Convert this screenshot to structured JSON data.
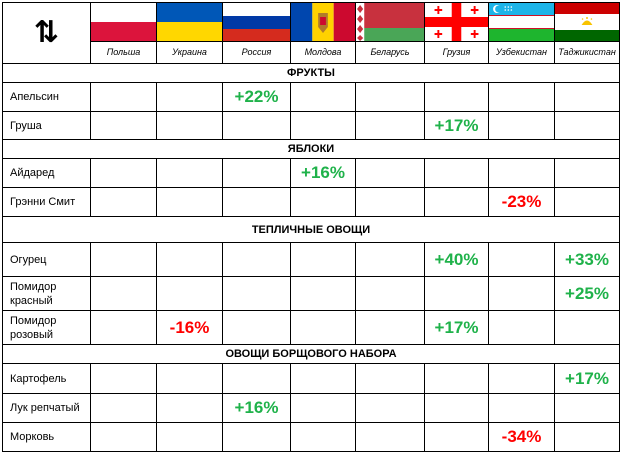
{
  "colors": {
    "positive": "#1fb24a",
    "negative": "#ff0000"
  },
  "header": {
    "sort_icon": "sort-arrows-icon",
    "sort_glyph": "⇅"
  },
  "countries": [
    {
      "name": "Польша",
      "flag": "poland-flag-icon"
    },
    {
      "name": "Украина",
      "flag": "ukraine-flag-icon"
    },
    {
      "name": "Россия",
      "flag": "russia-flag-icon"
    },
    {
      "name": "Молдова",
      "flag": "moldova-flag-icon"
    },
    {
      "name": "Беларусь",
      "flag": "belarus-flag-icon"
    },
    {
      "name": "Грузия",
      "flag": "georgia-flag-icon"
    },
    {
      "name": "Узбекистан",
      "flag": "uzbekistan-flag-icon"
    },
    {
      "name": "Таджикистан",
      "flag": "tajikistan-flag-icon"
    }
  ],
  "sections": [
    {
      "title": "ФРУКТЫ",
      "rows": [
        {
          "label": "Апельсин",
          "values": [
            "",
            "",
            "+22%",
            "",
            "",
            "",
            "",
            ""
          ]
        },
        {
          "label": "Груша",
          "values": [
            "",
            "",
            "",
            "",
            "",
            "+17%",
            "",
            ""
          ]
        }
      ]
    },
    {
      "title": "ЯБЛОКИ",
      "rows": [
        {
          "label": "Айдаред",
          "values": [
            "",
            "",
            "",
            "+16%",
            "",
            "",
            "",
            ""
          ]
        },
        {
          "label": "Грэнни Смит",
          "values": [
            "",
            "",
            "",
            "",
            "",
            "",
            "-23%",
            ""
          ]
        }
      ]
    },
    {
      "title": "ТЕПЛИЧНЫЕ ОВОЩИ",
      "rows": [
        {
          "label": "Огурец",
          "values": [
            "",
            "",
            "",
            "",
            "",
            "+40%",
            "",
            "+33%"
          ]
        },
        {
          "label": "Помидор красный",
          "values": [
            "",
            "",
            "",
            "",
            "",
            "",
            "",
            "+25%"
          ]
        },
        {
          "label": "Помидор розовый",
          "values": [
            "",
            "-16%",
            "",
            "",
            "",
            "+17%",
            "",
            ""
          ]
        }
      ]
    },
    {
      "title": "ОВОЩИ БОРЩОВОГО НАБОРА",
      "rows": [
        {
          "label": "Картофель",
          "values": [
            "",
            "",
            "",
            "",
            "",
            "",
            "",
            "+17%"
          ]
        },
        {
          "label": "Лук репчатый",
          "values": [
            "",
            "",
            "+16%",
            "",
            "",
            "",
            "",
            ""
          ]
        },
        {
          "label": "Морковь",
          "values": [
            "",
            "",
            "",
            "",
            "",
            "",
            "-34%",
            ""
          ]
        }
      ]
    }
  ]
}
